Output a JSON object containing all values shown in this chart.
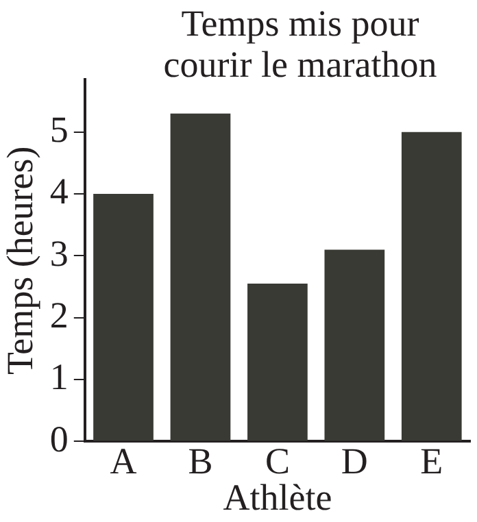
{
  "chart_data": {
    "type": "bar",
    "title": "Temps mis pour courir le marathon",
    "xlabel": "Athlète",
    "ylabel": "Temps (heures)",
    "categories": [
      "A",
      "B",
      "C",
      "D",
      "E"
    ],
    "values": [
      4,
      5.3,
      2.55,
      3.1,
      5
    ],
    "color": "#393a34",
    "ylim": [
      0,
      5.85
    ],
    "yticks": [
      0,
      1,
      2,
      3,
      4,
      5
    ],
    "grid": false,
    "legend": false
  }
}
